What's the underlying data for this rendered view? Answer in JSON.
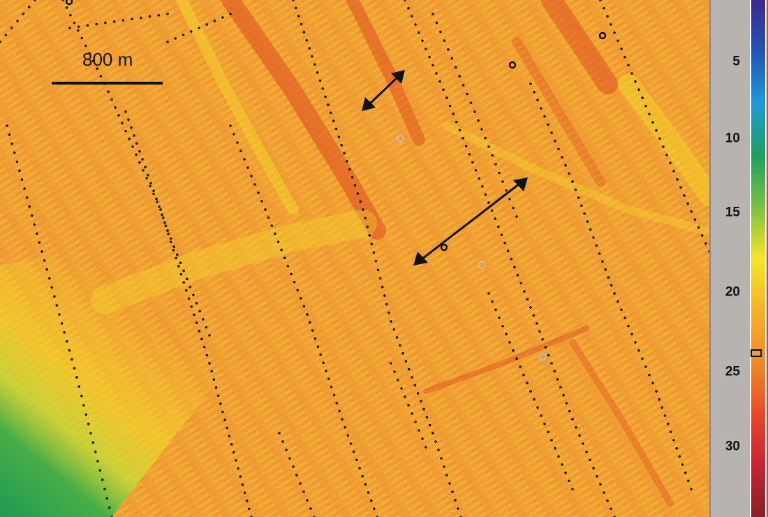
{
  "map": {
    "scale_bar_label": "800 m",
    "colors": {
      "background": "#f0a033",
      "band_red": "#de4a20",
      "band_yellow": "#f3dd2a",
      "green": "#2f9b45",
      "track_dot": "#1a1a1a",
      "sample_marker": "#c8b6c4"
    },
    "icons": [
      "double-arrow-icon",
      "double-arrow-icon"
    ]
  },
  "colorbar": {
    "ticks": [
      "5",
      "10",
      "15",
      "20",
      "25",
      "30"
    ],
    "colors": [
      "#3a2a8a",
      "#2255b8",
      "#1d9ad6",
      "#1f9e60",
      "#79c043",
      "#f4e52a",
      "#f4b32a",
      "#f08a28",
      "#e84a2a",
      "#c42535",
      "#8a1f25"
    ]
  }
}
